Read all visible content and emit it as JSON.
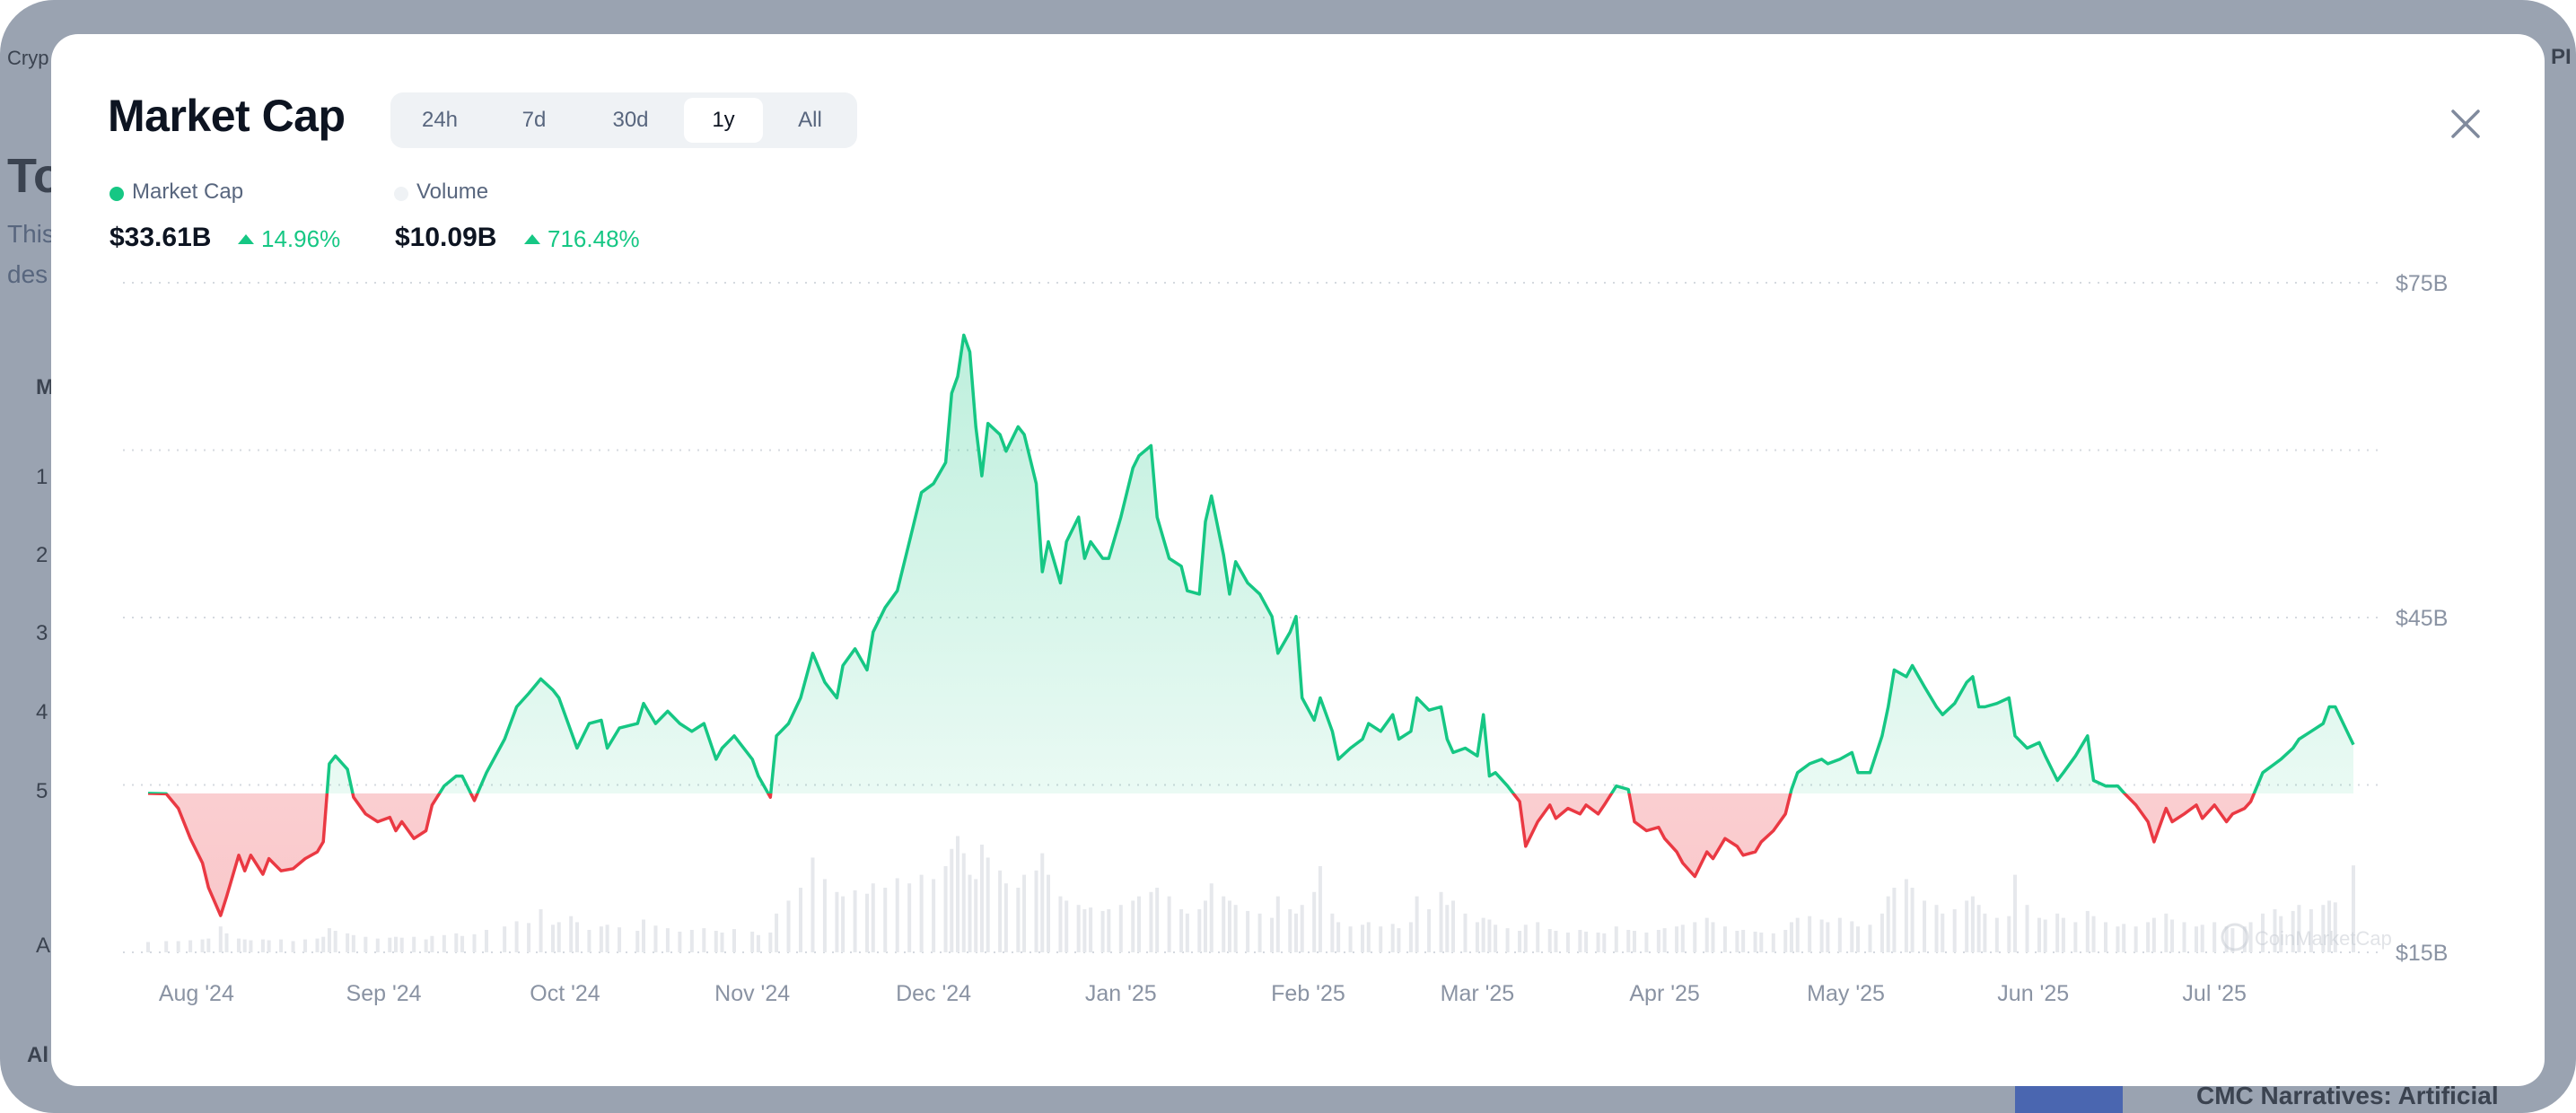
{
  "background": {
    "texts": [
      "Cryp",
      "To",
      "This",
      "des",
      "M",
      "1",
      "2",
      "3",
      "4",
      "5",
      "A",
      "Al",
      "PI",
      "CMC Narratives: Artificial"
    ]
  },
  "header": {
    "title": "Market Cap",
    "tabs": [
      {
        "label": "24h",
        "active": false
      },
      {
        "label": "7d",
        "active": false
      },
      {
        "label": "30d",
        "active": false
      },
      {
        "label": "1y",
        "active": true
      },
      {
        "label": "All",
        "active": false
      }
    ],
    "close_icon": "close-x-icon"
  },
  "legend": {
    "market_cap": {
      "label": "Market Cap",
      "value": "$33.61B",
      "change": "14.96%",
      "color": "#16c784"
    },
    "volume": {
      "label": "Volume",
      "value": "$10.09B",
      "change": "716.48%",
      "color": "#eff2f5"
    }
  },
  "colors": {
    "up": "#16c784",
    "down": "#ea3943",
    "volume": "#e6e8ec",
    "grid": "#d5d9df",
    "axis_text": "#8a93a3"
  },
  "chart_data": {
    "type": "area",
    "series_fields": [
      "date",
      "market_cap_billion_usd",
      "volume_billion_usd"
    ],
    "baseline": 29.24,
    "ylim": [
      15,
      75
    ],
    "y_ticks": [
      {
        "value": 75,
        "label": "$75B"
      },
      {
        "value": 45,
        "label": "$45B"
      },
      {
        "value": 15,
        "label": "$15B"
      }
    ],
    "y_gridlines": [
      75,
      60,
      45,
      30,
      15
    ],
    "grid": true,
    "watermark": "CoinMarketCap",
    "x_ticks": [
      {
        "date": "2024-08-01",
        "label": "Aug '24"
      },
      {
        "date": "2024-09-01",
        "label": "Sep '24"
      },
      {
        "date": "2024-10-01",
        "label": "Oct '24"
      },
      {
        "date": "2024-11-01",
        "label": "Nov '24"
      },
      {
        "date": "2024-12-01",
        "label": "Dec '24"
      },
      {
        "date": "2025-01-01",
        "label": "Jan '25"
      },
      {
        "date": "2025-02-01",
        "label": "Feb '25"
      },
      {
        "date": "2025-03-01",
        "label": "Mar '25"
      },
      {
        "date": "2025-04-01",
        "label": "Apr '25"
      },
      {
        "date": "2025-05-01",
        "label": "May '25"
      },
      {
        "date": "2025-06-01",
        "label": "Jun '25"
      },
      {
        "date": "2025-07-01",
        "label": "Jul '25"
      }
    ],
    "points": [
      [
        "2024-07-24",
        29.24,
        1.2
      ],
      [
        "2024-07-27",
        29.2,
        1.3
      ],
      [
        "2024-07-29",
        27.9,
        1.3
      ],
      [
        "2024-07-31",
        25.2,
        1.4
      ],
      [
        "2024-08-02",
        23.0,
        1.5
      ],
      [
        "2024-08-03",
        20.8,
        1.6
      ],
      [
        "2024-08-05",
        18.3,
        3.0
      ],
      [
        "2024-08-06",
        20.0,
        2.2
      ],
      [
        "2024-08-08",
        23.7,
        1.6
      ],
      [
        "2024-08-09",
        22.3,
        1.5
      ],
      [
        "2024-08-10",
        23.7,
        1.4
      ],
      [
        "2024-08-12",
        22.0,
        1.5
      ],
      [
        "2024-08-13",
        23.4,
        1.4
      ],
      [
        "2024-08-15",
        22.3,
        1.5
      ],
      [
        "2024-08-17",
        22.5,
        1.3
      ],
      [
        "2024-08-19",
        23.4,
        1.5
      ],
      [
        "2024-08-21",
        24.0,
        1.6
      ],
      [
        "2024-08-22",
        24.9,
        1.8
      ],
      [
        "2024-08-23",
        31.9,
        2.8
      ],
      [
        "2024-08-24",
        32.6,
        2.5
      ],
      [
        "2024-08-26",
        31.4,
        2.2
      ],
      [
        "2024-08-27",
        28.9,
        2.0
      ],
      [
        "2024-08-29",
        27.4,
        1.8
      ],
      [
        "2024-08-31",
        26.7,
        1.6
      ],
      [
        "2024-09-02",
        27.1,
        1.7
      ],
      [
        "2024-09-03",
        25.9,
        1.8
      ],
      [
        "2024-09-04",
        26.7,
        1.7
      ],
      [
        "2024-09-06",
        25.2,
        1.8
      ],
      [
        "2024-09-08",
        25.9,
        1.5
      ],
      [
        "2024-09-09",
        28.2,
        1.9
      ],
      [
        "2024-09-11",
        29.9,
        2.0
      ],
      [
        "2024-09-13",
        30.8,
        2.2
      ],
      [
        "2024-09-14",
        30.8,
        1.9
      ],
      [
        "2024-09-16",
        28.6,
        2.1
      ],
      [
        "2024-09-18",
        31.1,
        2.6
      ],
      [
        "2024-09-21",
        34.1,
        3.0
      ],
      [
        "2024-09-23",
        37.0,
        3.6
      ],
      [
        "2024-09-25",
        38.2,
        3.4
      ],
      [
        "2024-09-27",
        39.5,
        5.0
      ],
      [
        "2024-09-29",
        38.5,
        3.2
      ],
      [
        "2024-09-30",
        37.8,
        3.5
      ],
      [
        "2024-10-02",
        34.8,
        4.2
      ],
      [
        "2024-10-03",
        33.3,
        3.5
      ],
      [
        "2024-10-05",
        35.5,
        2.6
      ],
      [
        "2024-10-07",
        35.8,
        3.0
      ],
      [
        "2024-10-08",
        33.3,
        3.2
      ],
      [
        "2024-10-10",
        35.1,
        2.9
      ],
      [
        "2024-10-13",
        35.5,
        2.5
      ],
      [
        "2024-10-14",
        37.3,
        3.8
      ],
      [
        "2024-10-16",
        35.5,
        3.1
      ],
      [
        "2024-10-18",
        36.6,
        2.8
      ],
      [
        "2024-10-20",
        35.5,
        2.4
      ],
      [
        "2024-10-22",
        34.8,
        2.6
      ],
      [
        "2024-10-24",
        35.5,
        2.8
      ],
      [
        "2024-10-26",
        32.3,
        2.5
      ],
      [
        "2024-10-27",
        33.3,
        2.3
      ],
      [
        "2024-10-29",
        34.4,
        2.7
      ],
      [
        "2024-11-01",
        32.3,
        2.4
      ],
      [
        "2024-11-02",
        30.8,
        2.0
      ],
      [
        "2024-11-04",
        28.9,
        2.3
      ],
      [
        "2024-11-05",
        34.4,
        4.5
      ],
      [
        "2024-11-07",
        35.5,
        6.0
      ],
      [
        "2024-11-09",
        37.8,
        7.5
      ],
      [
        "2024-11-11",
        41.8,
        11.0
      ],
      [
        "2024-11-13",
        39.2,
        8.5
      ],
      [
        "2024-11-15",
        37.8,
        7.0
      ],
      [
        "2024-11-16",
        40.7,
        6.5
      ],
      [
        "2024-11-18",
        42.2,
        7.2
      ],
      [
        "2024-11-20",
        40.3,
        6.8
      ],
      [
        "2024-11-21",
        43.7,
        8.0
      ],
      [
        "2024-11-23",
        45.9,
        7.5
      ],
      [
        "2024-11-25",
        47.4,
        8.6
      ],
      [
        "2024-11-27",
        51.8,
        8.0
      ],
      [
        "2024-11-29",
        56.2,
        9.0
      ],
      [
        "2024-12-01",
        57.0,
        8.5
      ],
      [
        "2024-12-03",
        58.9,
        10.0
      ],
      [
        "2024-12-04",
        65.1,
        12.0
      ],
      [
        "2024-12-05",
        66.6,
        13.5
      ],
      [
        "2024-12-06",
        70.3,
        11.5
      ],
      [
        "2024-12-07",
        68.8,
        9.0
      ],
      [
        "2024-12-08",
        62.1,
        8.5
      ],
      [
        "2024-12-09",
        57.7,
        12.5
      ],
      [
        "2024-12-10",
        62.4,
        11.0
      ],
      [
        "2024-12-12",
        61.4,
        9.5
      ],
      [
        "2024-12-13",
        59.9,
        8.0
      ],
      [
        "2024-12-15",
        62.1,
        7.5
      ],
      [
        "2024-12-16",
        61.4,
        9.0
      ],
      [
        "2024-12-18",
        57.0,
        9.5
      ],
      [
        "2024-12-19",
        49.1,
        11.5
      ],
      [
        "2024-12-20",
        51.8,
        9.0
      ],
      [
        "2024-12-22",
        48.1,
        6.5
      ],
      [
        "2024-12-23",
        51.8,
        6.0
      ],
      [
        "2024-12-25",
        54.0,
        5.5
      ],
      [
        "2024-12-26",
        50.3,
        5.0
      ],
      [
        "2024-12-27",
        51.8,
        5.2
      ],
      [
        "2024-12-29",
        50.3,
        4.8
      ],
      [
        "2024-12-30",
        50.3,
        5.0
      ],
      [
        "2025-01-01",
        54.0,
        5.5
      ],
      [
        "2025-01-03",
        58.4,
        6.0
      ],
      [
        "2025-01-04",
        59.5,
        6.5
      ],
      [
        "2025-01-06",
        60.4,
        7.0
      ],
      [
        "2025-01-07",
        54.0,
        7.5
      ],
      [
        "2025-01-09",
        50.3,
        6.5
      ],
      [
        "2025-01-11",
        49.6,
        5.0
      ],
      [
        "2025-01-12",
        47.4,
        4.5
      ],
      [
        "2025-01-14",
        47.1,
        5.0
      ],
      [
        "2025-01-15",
        53.6,
        6.0
      ],
      [
        "2025-01-16",
        55.9,
        8.0
      ],
      [
        "2025-01-18",
        50.6,
        6.5
      ],
      [
        "2025-01-19",
        47.1,
        6.0
      ],
      [
        "2025-01-20",
        50.0,
        5.5
      ],
      [
        "2025-01-22",
        48.1,
        4.8
      ],
      [
        "2025-01-24",
        47.1,
        4.5
      ],
      [
        "2025-01-26",
        45.1,
        4.0
      ],
      [
        "2025-01-27",
        41.8,
        6.5
      ],
      [
        "2025-01-29",
        43.7,
        5.0
      ],
      [
        "2025-01-30",
        45.1,
        4.5
      ],
      [
        "2025-01-31",
        37.8,
        5.5
      ],
      [
        "2025-02-02",
        35.8,
        7.0
      ],
      [
        "2025-02-03",
        37.8,
        10.0
      ],
      [
        "2025-02-05",
        34.8,
        4.5
      ],
      [
        "2025-02-06",
        32.3,
        3.5
      ],
      [
        "2025-02-08",
        33.3,
        3.0
      ],
      [
        "2025-02-10",
        34.1,
        3.2
      ],
      [
        "2025-02-11",
        35.5,
        3.5
      ],
      [
        "2025-02-13",
        34.8,
        3.0
      ],
      [
        "2025-02-15",
        36.3,
        3.3
      ],
      [
        "2025-02-16",
        34.1,
        2.8
      ],
      [
        "2025-02-18",
        34.8,
        3.5
      ],
      [
        "2025-02-19",
        37.8,
        6.5
      ],
      [
        "2025-02-21",
        36.7,
        5.0
      ],
      [
        "2025-02-23",
        37.0,
        7.0
      ],
      [
        "2025-02-24",
        34.1,
        5.5
      ],
      [
        "2025-02-25",
        32.9,
        6.0
      ],
      [
        "2025-02-27",
        33.3,
        4.5
      ],
      [
        "2025-03-01",
        32.6,
        3.5
      ],
      [
        "2025-03-02",
        36.3,
        4.0
      ],
      [
        "2025-03-03",
        30.8,
        3.8
      ],
      [
        "2025-03-04",
        31.1,
        3.2
      ],
      [
        "2025-03-06",
        29.9,
        2.8
      ],
      [
        "2025-03-08",
        28.5,
        2.5
      ],
      [
        "2025-03-09",
        24.5,
        3.2
      ],
      [
        "2025-03-11",
        26.7,
        3.5
      ],
      [
        "2025-03-13",
        28.2,
        2.7
      ],
      [
        "2025-03-14",
        27.0,
        2.5
      ],
      [
        "2025-03-16",
        27.9,
        2.3
      ],
      [
        "2025-03-18",
        27.4,
        2.6
      ],
      [
        "2025-03-19",
        28.2,
        2.4
      ],
      [
        "2025-03-21",
        27.4,
        2.3
      ],
      [
        "2025-03-22",
        28.2,
        2.2
      ],
      [
        "2025-03-24",
        29.9,
        3.0
      ],
      [
        "2025-03-26",
        29.6,
        2.6
      ],
      [
        "2025-03-27",
        26.7,
        2.5
      ],
      [
        "2025-03-29",
        25.9,
        2.3
      ],
      [
        "2025-03-31",
        26.2,
        2.6
      ],
      [
        "2025-04-01",
        25.2,
        2.8
      ],
      [
        "2025-04-03",
        24.0,
        3.0
      ],
      [
        "2025-04-04",
        23.0,
        3.2
      ],
      [
        "2025-04-06",
        21.8,
        3.5
      ],
      [
        "2025-04-08",
        24.0,
        4.0
      ],
      [
        "2025-04-09",
        23.4,
        3.5
      ],
      [
        "2025-04-11",
        25.2,
        3.0
      ],
      [
        "2025-04-13",
        24.5,
        2.5
      ],
      [
        "2025-04-14",
        23.7,
        2.6
      ],
      [
        "2025-04-16",
        24.0,
        2.4
      ],
      [
        "2025-04-17",
        24.9,
        2.3
      ],
      [
        "2025-04-19",
        25.9,
        2.2
      ],
      [
        "2025-04-21",
        27.4,
        2.6
      ],
      [
        "2025-04-22",
        29.6,
        3.5
      ],
      [
        "2025-04-23",
        31.1,
        4.0
      ],
      [
        "2025-04-25",
        31.9,
        4.2
      ],
      [
        "2025-04-27",
        32.3,
        3.8
      ],
      [
        "2025-04-28",
        31.9,
        3.5
      ],
      [
        "2025-04-30",
        32.3,
        4.0
      ],
      [
        "2025-05-02",
        32.9,
        3.6
      ],
      [
        "2025-05-03",
        31.1,
        3.0
      ],
      [
        "2025-05-05",
        31.1,
        3.2
      ],
      [
        "2025-05-07",
        34.4,
        4.5
      ],
      [
        "2025-05-08",
        37.0,
        6.5
      ],
      [
        "2025-05-09",
        40.3,
        7.5
      ],
      [
        "2025-05-11",
        39.7,
        8.5
      ],
      [
        "2025-05-12",
        40.7,
        7.5
      ],
      [
        "2025-05-14",
        38.8,
        6.0
      ],
      [
        "2025-05-16",
        37.0,
        5.5
      ],
      [
        "2025-05-17",
        36.3,
        4.5
      ],
      [
        "2025-05-19",
        37.3,
        5.0
      ],
      [
        "2025-05-21",
        39.2,
        6.0
      ],
      [
        "2025-05-22",
        39.7,
        6.5
      ],
      [
        "2025-05-23",
        37.0,
        5.5
      ],
      [
        "2025-05-24",
        37.0,
        4.5
      ],
      [
        "2025-05-26",
        37.3,
        4.0
      ],
      [
        "2025-05-28",
        37.8,
        4.2
      ],
      [
        "2025-05-29",
        34.4,
        9.0
      ],
      [
        "2025-05-31",
        33.3,
        5.5
      ],
      [
        "2025-06-02",
        33.8,
        4.0
      ],
      [
        "2025-06-03",
        32.6,
        3.8
      ],
      [
        "2025-06-05",
        30.4,
        4.5
      ],
      [
        "2025-06-06",
        31.1,
        4.0
      ],
      [
        "2025-06-08",
        32.6,
        3.5
      ],
      [
        "2025-06-10",
        34.4,
        4.8
      ],
      [
        "2025-06-11",
        30.4,
        4.2
      ],
      [
        "2025-06-13",
        29.9,
        3.5
      ],
      [
        "2025-06-15",
        29.9,
        3.0
      ],
      [
        "2025-06-16",
        29.3,
        3.3
      ],
      [
        "2025-06-18",
        28.2,
        3.0
      ],
      [
        "2025-06-20",
        26.7,
        3.5
      ],
      [
        "2025-06-21",
        24.9,
        4.0
      ],
      [
        "2025-06-23",
        27.9,
        4.5
      ],
      [
        "2025-06-24",
        26.7,
        3.8
      ],
      [
        "2025-06-26",
        27.4,
        3.5
      ],
      [
        "2025-06-28",
        28.2,
        3.0
      ],
      [
        "2025-06-29",
        27.0,
        3.2
      ],
      [
        "2025-07-01",
        28.2,
        3.5
      ],
      [
        "2025-07-03",
        26.7,
        3.0
      ],
      [
        "2025-07-04",
        27.4,
        2.8
      ],
      [
        "2025-07-06",
        27.9,
        3.0
      ],
      [
        "2025-07-07",
        28.5,
        3.5
      ],
      [
        "2025-07-09",
        31.1,
        4.5
      ],
      [
        "2025-07-11",
        31.9,
        5.0
      ],
      [
        "2025-07-12",
        32.3,
        4.2
      ],
      [
        "2025-07-14",
        33.3,
        4.8
      ],
      [
        "2025-07-15",
        34.1,
        5.5
      ],
      [
        "2025-07-17",
        34.8,
        5.0
      ],
      [
        "2025-07-19",
        35.5,
        5.5
      ],
      [
        "2025-07-20",
        37.0,
        6.0
      ],
      [
        "2025-07-21",
        37.0,
        5.8
      ],
      [
        "2025-07-24",
        33.61,
        10.09
      ]
    ]
  }
}
